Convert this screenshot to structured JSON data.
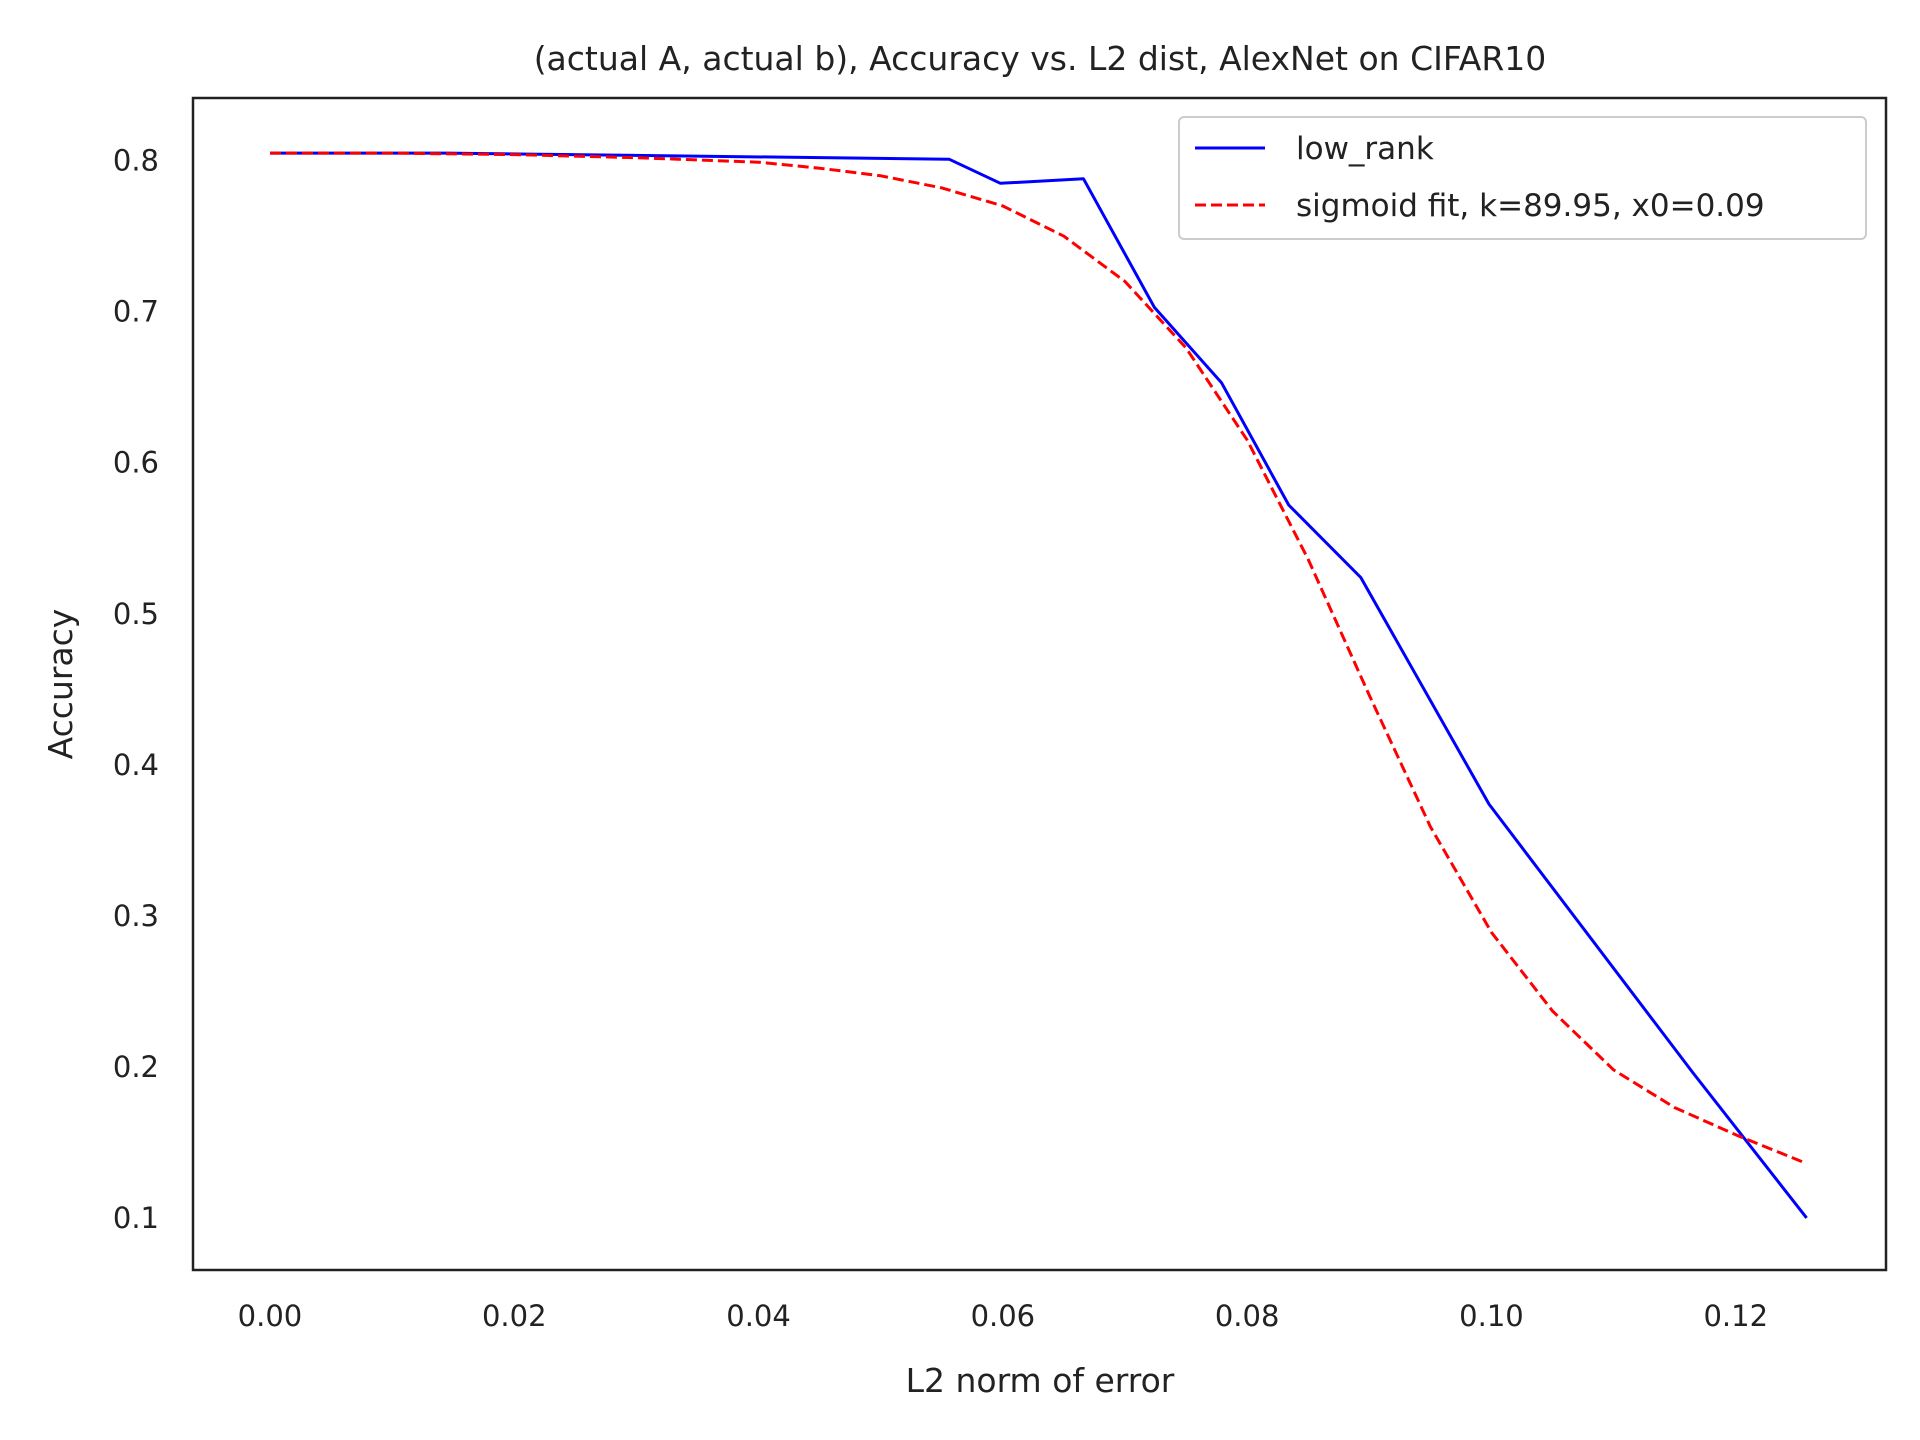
{
  "chart_data": {
    "type": "line",
    "title": "(actual A, actual b), Accuracy vs. L2 dist, AlexNet on CIFAR10",
    "xlabel": "L2 norm of error",
    "ylabel": "Accuracy",
    "xlim": [
      -0.0063,
      0.1323
    ],
    "ylim": [
      0.0655,
      0.8415
    ],
    "xticks": [
      0.0,
      0.02,
      0.04,
      0.06,
      0.08,
      0.1,
      0.12
    ],
    "xtick_labels": [
      "0.00",
      "0.02",
      "0.04",
      "0.06",
      "0.08",
      "0.10",
      "0.12"
    ],
    "yticks": [
      0.1,
      0.2,
      0.3,
      0.4,
      0.5,
      0.6,
      0.7,
      0.8
    ],
    "ytick_labels": [
      "0.1",
      "0.2",
      "0.3",
      "0.4",
      "0.5",
      "0.6",
      "0.7",
      "0.8"
    ],
    "grid": false,
    "legend_position": "top-right",
    "series": [
      {
        "name": "low_rank",
        "color": "#0000ff",
        "style": "solid",
        "x": [
          0.0,
          0.0145,
          0.0556,
          0.0598,
          0.0666,
          0.0724,
          0.0779,
          0.0834,
          0.0893,
          0.0998,
          0.1165,
          0.1258
        ],
        "y": [
          0.805,
          0.805,
          0.801,
          0.785,
          0.788,
          0.703,
          0.653,
          0.572,
          0.524,
          0.374,
          0.196,
          0.1
        ]
      },
      {
        "name": "sigmoid fit, k=89.95, x0=0.09",
        "color": "#ff0000",
        "style": "dashed",
        "x": [
          0.0,
          0.01,
          0.02,
          0.03,
          0.04,
          0.045,
          0.05,
          0.055,
          0.06,
          0.065,
          0.07,
          0.075,
          0.08,
          0.085,
          0.09,
          0.095,
          0.1,
          0.105,
          0.11,
          0.115,
          0.12,
          0.1258
        ],
        "y": [
          0.805,
          0.805,
          0.804,
          0.802,
          0.799,
          0.795,
          0.79,
          0.782,
          0.77,
          0.75,
          0.72,
          0.676,
          0.615,
          0.536,
          0.446,
          0.359,
          0.289,
          0.237,
          0.198,
          0.173,
          0.155,
          0.136
        ]
      }
    ]
  }
}
